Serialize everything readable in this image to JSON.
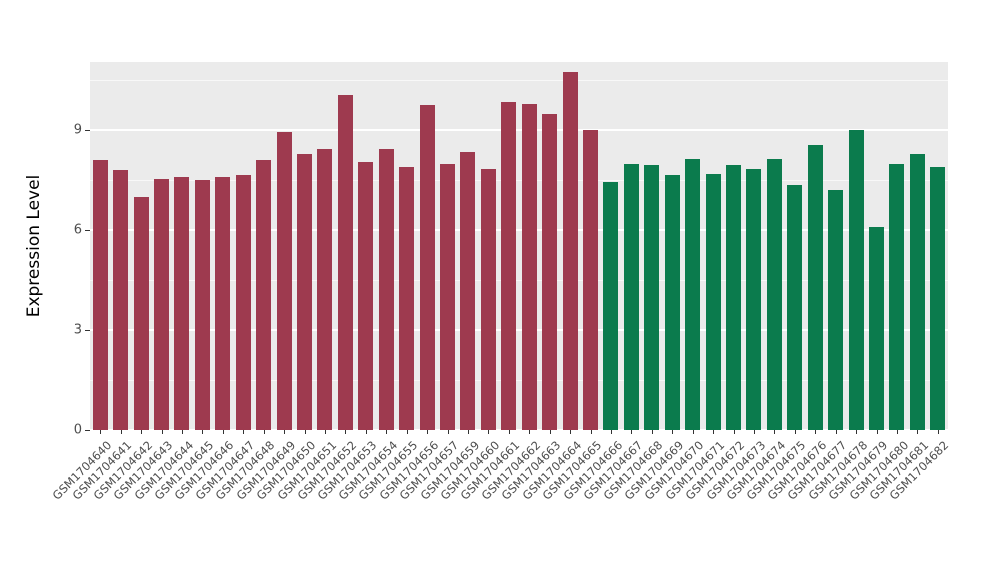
{
  "chart_data": {
    "type": "bar",
    "title": "",
    "xlabel": "",
    "ylabel": "Expression Level",
    "ylim": [
      0,
      11.05
    ],
    "yticks": [
      0,
      3,
      6,
      9
    ],
    "yticks_minor": [
      1.5,
      4.5,
      7.5,
      10.5
    ],
    "grid": true,
    "legend": "none",
    "panel_bg": "#EBEBEB",
    "grid_major_color": "#FFFFFF",
    "grid_minor_color": "#F7F7F7",
    "groups": [
      {
        "name": "group1",
        "color": "#9E3A4F",
        "count": 25
      },
      {
        "name": "group2",
        "color": "#0B7B4D",
        "count": 17
      }
    ],
    "categories": [
      "GSM1704640",
      "GSM1704641",
      "GSM1704642",
      "GSM1704643",
      "GSM1704644",
      "GSM1704645",
      "GSM1704646",
      "GSM1704647",
      "GSM1704648",
      "GSM1704649",
      "GSM1704650",
      "GSM1704651",
      "GSM1704652",
      "GSM1704653",
      "GSM1704654",
      "GSM1704655",
      "GSM1704656",
      "GSM1704657",
      "GSM1704659",
      "GSM1704660",
      "GSM1704661",
      "GSM1704662",
      "GSM1704663",
      "GSM1704664",
      "GSM1704665",
      "GSM1704666",
      "GSM1704667",
      "GSM1704668",
      "GSM1704669",
      "GSM1704670",
      "GSM1704671",
      "GSM1704672",
      "GSM1704673",
      "GSM1704674",
      "GSM1704675",
      "GSM1704676",
      "GSM1704677",
      "GSM1704678",
      "GSM1704679",
      "GSM1704680",
      "GSM1704681",
      "GSM1704682"
    ],
    "values": [
      8.1,
      7.8,
      7.0,
      7.55,
      7.6,
      7.5,
      7.6,
      7.65,
      8.1,
      8.95,
      8.3,
      8.45,
      10.05,
      8.05,
      8.45,
      7.9,
      9.75,
      8.0,
      8.35,
      7.85,
      9.85,
      9.8,
      9.5,
      10.75,
      9.0,
      7.45,
      8.0,
      7.95,
      7.65,
      8.15,
      7.7,
      7.95,
      7.85,
      8.15,
      7.35,
      8.55,
      7.2,
      9.0,
      6.1,
      8.0,
      8.3,
      7.9
    ],
    "group_split_index": 25
  }
}
